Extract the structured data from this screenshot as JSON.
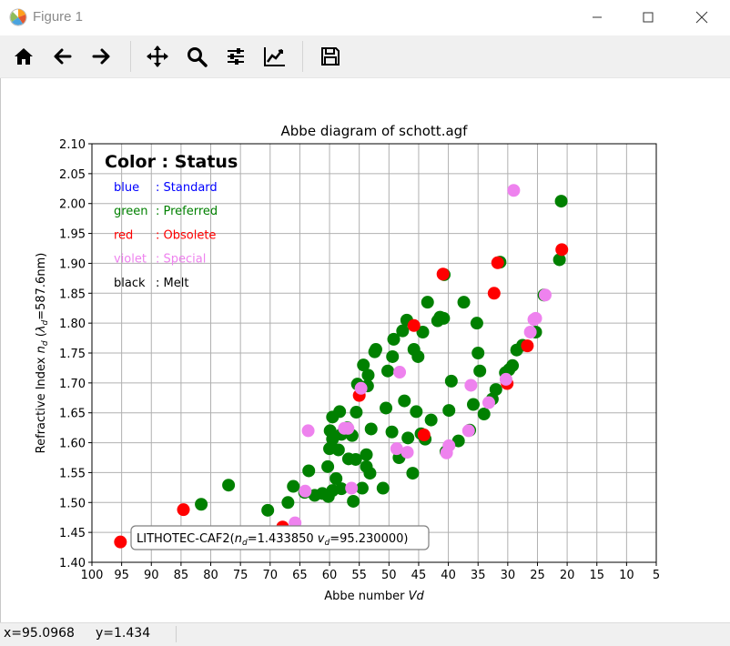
{
  "window": {
    "title": "Figure 1"
  },
  "toolbar": {
    "buttons": [
      {
        "name": "home-button",
        "icon": "home-icon"
      },
      {
        "name": "back-button",
        "icon": "arrow-left-icon"
      },
      {
        "name": "forward-button",
        "icon": "arrow-right-icon"
      },
      {
        "name": "pan-button",
        "icon": "move-icon"
      },
      {
        "name": "zoom-button",
        "icon": "magnifier-icon"
      },
      {
        "name": "subplots-button",
        "icon": "sliders-icon"
      },
      {
        "name": "customize-button",
        "icon": "line-chart-icon"
      },
      {
        "name": "save-button",
        "icon": "floppy-disk-icon"
      }
    ]
  },
  "statusbar": {
    "x_readout": "x=95.0968",
    "y_readout": "y=1.434"
  },
  "legend": {
    "title": "Color : Status",
    "entries": [
      {
        "key": "blue",
        "sep": ": Standard",
        "color": "#0000ff"
      },
      {
        "key": "green",
        "sep": ": Preferred",
        "color": "#008000"
      },
      {
        "key": "red",
        "sep": ": Obsolete",
        "color": "#ff0000"
      },
      {
        "key": "violet",
        "sep": ": Special",
        "color": "#ee82ee"
      },
      {
        "key": "black",
        "sep": ": Melt",
        "color": "#000000"
      }
    ]
  },
  "chart_data": {
    "type": "scatter",
    "title": "Abbe diagram of schott.agf",
    "xlabel": "Abbe number Vd",
    "ylabel": "Refractive Index nd (λd=587.6nm)",
    "xlim": [
      100,
      5
    ],
    "ylim": [
      1.4,
      2.1
    ],
    "x_ticks": [
      "100",
      "95",
      "90",
      "85",
      "80",
      "75",
      "70",
      "65",
      "60",
      "55",
      "50",
      "45",
      "40",
      "35",
      "30",
      "25",
      "20",
      "15",
      "10",
      "5"
    ],
    "y_ticks": [
      "1.40",
      "1.45",
      "1.50",
      "1.55",
      "1.60",
      "1.65",
      "1.70",
      "1.75",
      "1.80",
      "1.85",
      "1.90",
      "1.95",
      "2.00",
      "2.05",
      "2.10"
    ],
    "grid": true,
    "annotation": {
      "text": "LITHOTEC-CAF2(nd=1.433850 vd=95.230000)",
      "x": 95.23,
      "y": 1.43385
    },
    "series": [
      {
        "name": "Preferred",
        "color": "#008000",
        "points": [
          [
            81.6,
            1.497
          ],
          [
            77,
            1.529
          ],
          [
            70.4,
            1.487
          ],
          [
            67,
            1.5
          ],
          [
            66.1,
            1.527
          ],
          [
            64.2,
            1.517
          ],
          [
            63.5,
            1.553
          ],
          [
            62.5,
            1.512
          ],
          [
            61.2,
            1.515
          ],
          [
            60.2,
            1.51
          ],
          [
            59.5,
            1.52
          ],
          [
            58.9,
            1.54
          ],
          [
            58,
            1.523
          ],
          [
            60.3,
            1.56
          ],
          [
            60,
            1.59
          ],
          [
            59.5,
            1.606
          ],
          [
            59.9,
            1.62
          ],
          [
            59.5,
            1.643
          ],
          [
            58.5,
            1.588
          ],
          [
            58,
            1.614
          ],
          [
            58.3,
            1.652
          ],
          [
            57,
            1.625
          ],
          [
            56.8,
            1.573
          ],
          [
            56.2,
            1.612
          ],
          [
            56,
            1.502
          ],
          [
            55.5,
            1.651
          ],
          [
            55.6,
            1.572
          ],
          [
            55.3,
            1.698
          ],
          [
            54.5,
            1.524
          ],
          [
            54.3,
            1.73
          ],
          [
            53.8,
            1.56
          ],
          [
            53.8,
            1.58
          ],
          [
            53.5,
            1.713
          ],
          [
            53.2,
            1.549
          ],
          [
            53,
            1.623
          ],
          [
            53.6,
            1.695
          ],
          [
            52.4,
            1.752
          ],
          [
            52.2,
            1.756
          ],
          [
            51,
            1.524
          ],
          [
            50.5,
            1.658
          ],
          [
            50.2,
            1.72
          ],
          [
            49.5,
            1.618
          ],
          [
            49.2,
            1.773
          ],
          [
            49.4,
            1.744
          ],
          [
            48.3,
            1.575
          ],
          [
            47.7,
            1.787
          ],
          [
            47.4,
            1.67
          ],
          [
            47,
            1.805
          ],
          [
            46.8,
            1.608
          ],
          [
            46,
            1.549
          ],
          [
            45.8,
            1.756
          ],
          [
            45.4,
            1.652
          ],
          [
            45.1,
            1.744
          ],
          [
            44.6,
            1.615
          ],
          [
            44.3,
            1.785
          ],
          [
            43.9,
            1.606
          ],
          [
            43.5,
            1.835
          ],
          [
            42.9,
            1.638
          ],
          [
            41.8,
            1.804
          ],
          [
            41.4,
            1.81
          ],
          [
            40.7,
            1.881
          ],
          [
            40.8,
            1.808
          ],
          [
            40.4,
            1.585
          ],
          [
            39.9,
            1.654
          ],
          [
            39.5,
            1.703
          ],
          [
            38.3,
            1.603
          ],
          [
            37.4,
            1.835
          ],
          [
            36.4,
            1.621
          ],
          [
            35.8,
            1.664
          ],
          [
            35.2,
            1.8
          ],
          [
            35,
            1.75
          ],
          [
            34.7,
            1.72
          ],
          [
            34,
            1.648
          ],
          [
            32.6,
            1.673
          ],
          [
            32,
            1.689
          ],
          [
            31.3,
            1.902
          ],
          [
            30.4,
            1.717
          ],
          [
            29.8,
            1.722
          ],
          [
            29.2,
            1.729
          ],
          [
            28.5,
            1.755
          ],
          [
            27.5,
            1.763
          ],
          [
            25.3,
            1.785
          ],
          [
            23.9,
            1.847
          ],
          [
            21.3,
            1.906
          ],
          [
            21,
            2.004
          ]
        ]
      },
      {
        "name": "Obsolete",
        "color": "#ff0000",
        "points": [
          [
            95.2,
            1.434
          ],
          [
            84.6,
            1.488
          ],
          [
            67.9,
            1.459
          ],
          [
            55,
            1.679
          ],
          [
            45.8,
            1.796
          ],
          [
            44.1,
            1.613
          ],
          [
            40.9,
            1.882
          ],
          [
            32.3,
            1.85
          ],
          [
            31.7,
            1.901
          ],
          [
            30.1,
            1.699
          ],
          [
            26.7,
            1.762
          ],
          [
            20.9,
            1.923
          ]
        ]
      },
      {
        "name": "Special",
        "color": "#ee82ee",
        "points": [
          [
            65.8,
            1.466
          ],
          [
            64.1,
            1.519
          ],
          [
            63.6,
            1.62
          ],
          [
            57.5,
            1.624
          ],
          [
            56.9,
            1.624
          ],
          [
            56.3,
            1.524
          ],
          [
            54.7,
            1.691
          ],
          [
            48.7,
            1.59
          ],
          [
            48.2,
            1.718
          ],
          [
            46.9,
            1.584
          ],
          [
            40.3,
            1.583
          ],
          [
            39.9,
            1.595
          ],
          [
            36.6,
            1.62
          ],
          [
            36.2,
            1.696
          ],
          [
            33.2,
            1.667
          ],
          [
            30.3,
            1.706
          ],
          [
            29,
            2.022
          ],
          [
            26.2,
            1.785
          ],
          [
            25.6,
            1.806
          ],
          [
            25.3,
            1.808
          ],
          [
            23.7,
            1.847
          ]
        ]
      }
    ]
  }
}
